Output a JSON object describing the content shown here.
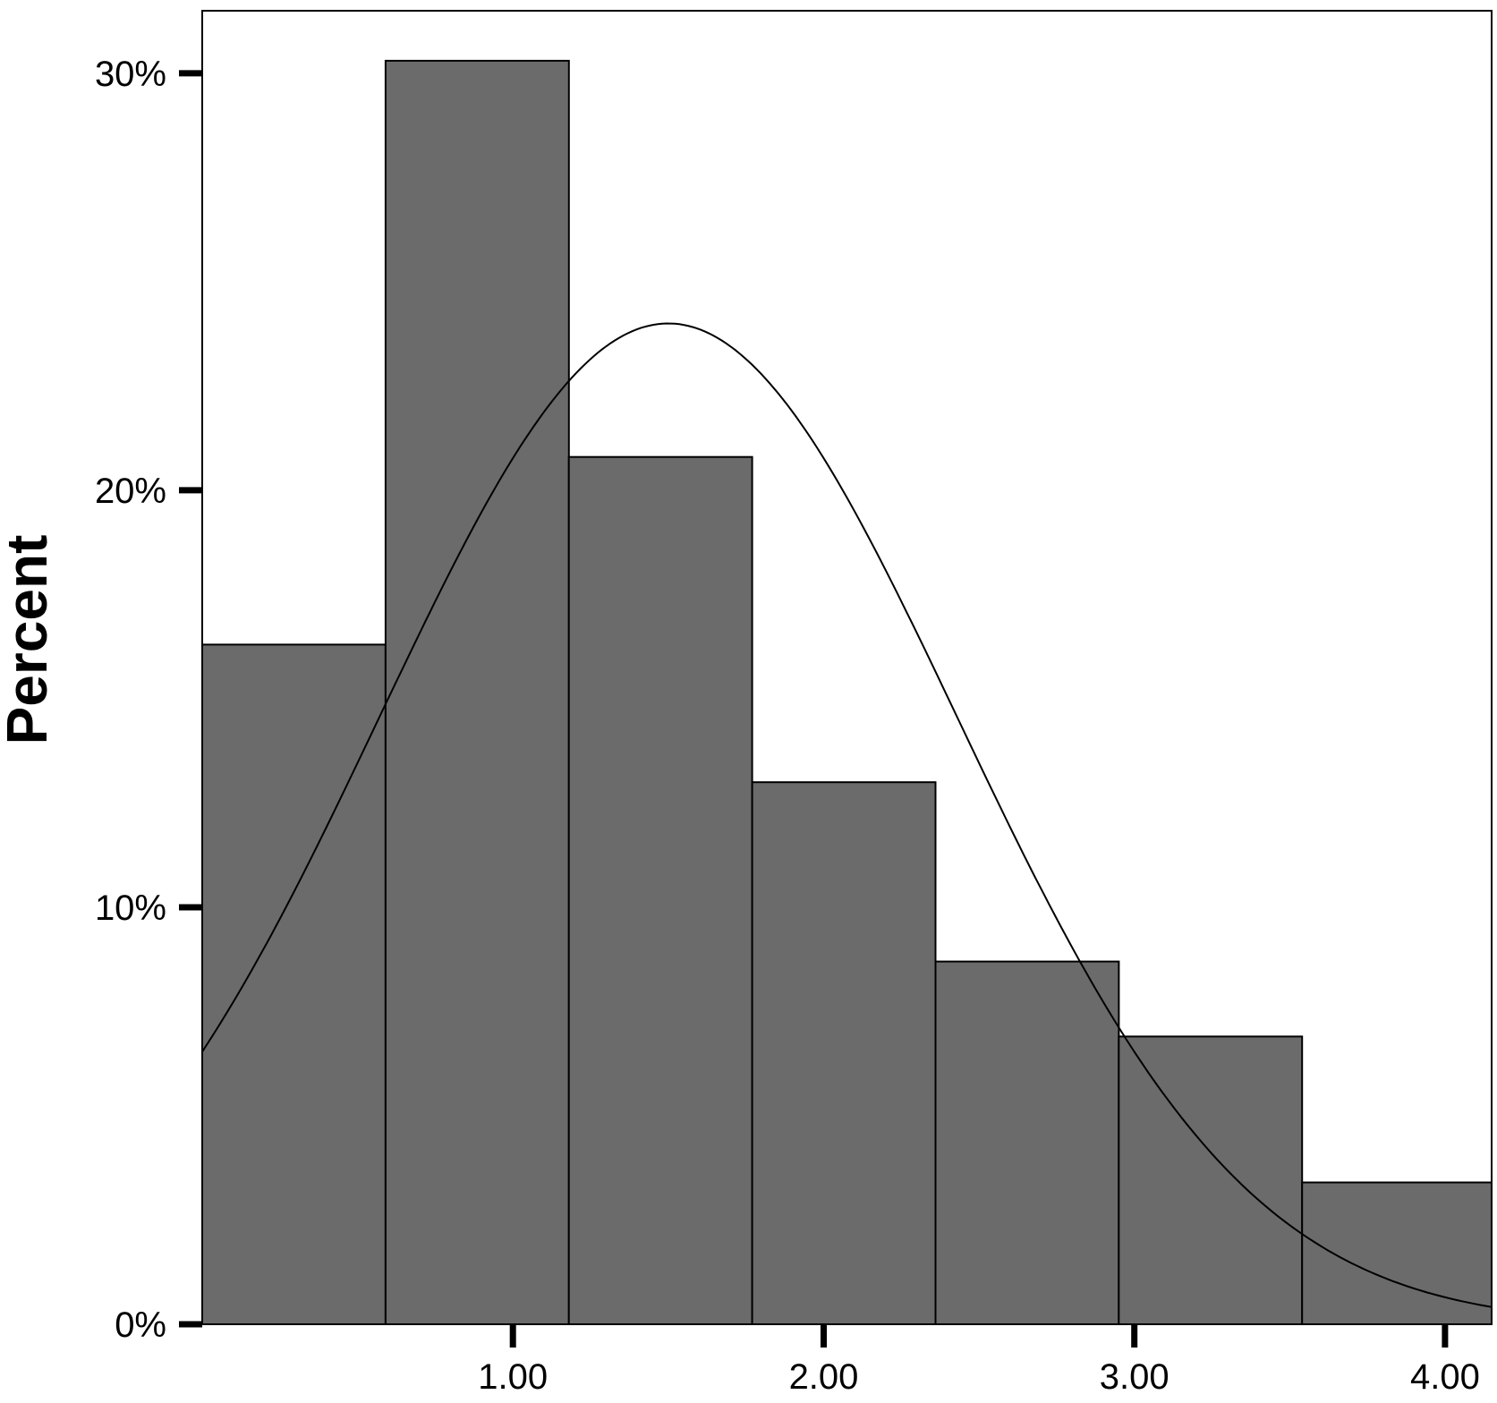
{
  "colors": {
    "background": "#ffffff",
    "bar_fill": "#6b6b6b",
    "bar_stroke": "#000000",
    "frame": "#000000",
    "curve": "#000000",
    "axis": "#000000"
  },
  "chart_data": {
    "type": "bar",
    "subtype": "histogram-with-normal-curve",
    "title": "",
    "xlabel": "",
    "ylabel": "Percent",
    "xlim": [
      0.0,
      4.15
    ],
    "ylim": [
      0,
      31.5
    ],
    "x_ticks": [
      1.0,
      2.0,
      3.0,
      4.0
    ],
    "x_tick_labels": [
      "1.00",
      "2.00",
      "3.00",
      "4.00"
    ],
    "y_ticks": [
      0,
      10,
      20,
      30
    ],
    "y_tick_labels": [
      "0%",
      "10%",
      "20%",
      "30%"
    ],
    "bins": [
      {
        "x0": 0.0,
        "x1": 0.59,
        "value": 16.3
      },
      {
        "x0": 0.59,
        "x1": 1.18,
        "value": 30.3
      },
      {
        "x0": 1.18,
        "x1": 1.77,
        "value": 20.8
      },
      {
        "x0": 1.77,
        "x1": 2.36,
        "value": 13.0
      },
      {
        "x0": 2.36,
        "x1": 2.95,
        "value": 8.7
      },
      {
        "x0": 2.95,
        "x1": 3.54,
        "value": 6.9
      },
      {
        "x0": 3.54,
        "x1": 4.15,
        "value": 3.4
      }
    ],
    "normal_curve": {
      "mean": 1.5,
      "sd": 0.93,
      "peak": 24.0
    },
    "grid": false,
    "legend": "none"
  }
}
